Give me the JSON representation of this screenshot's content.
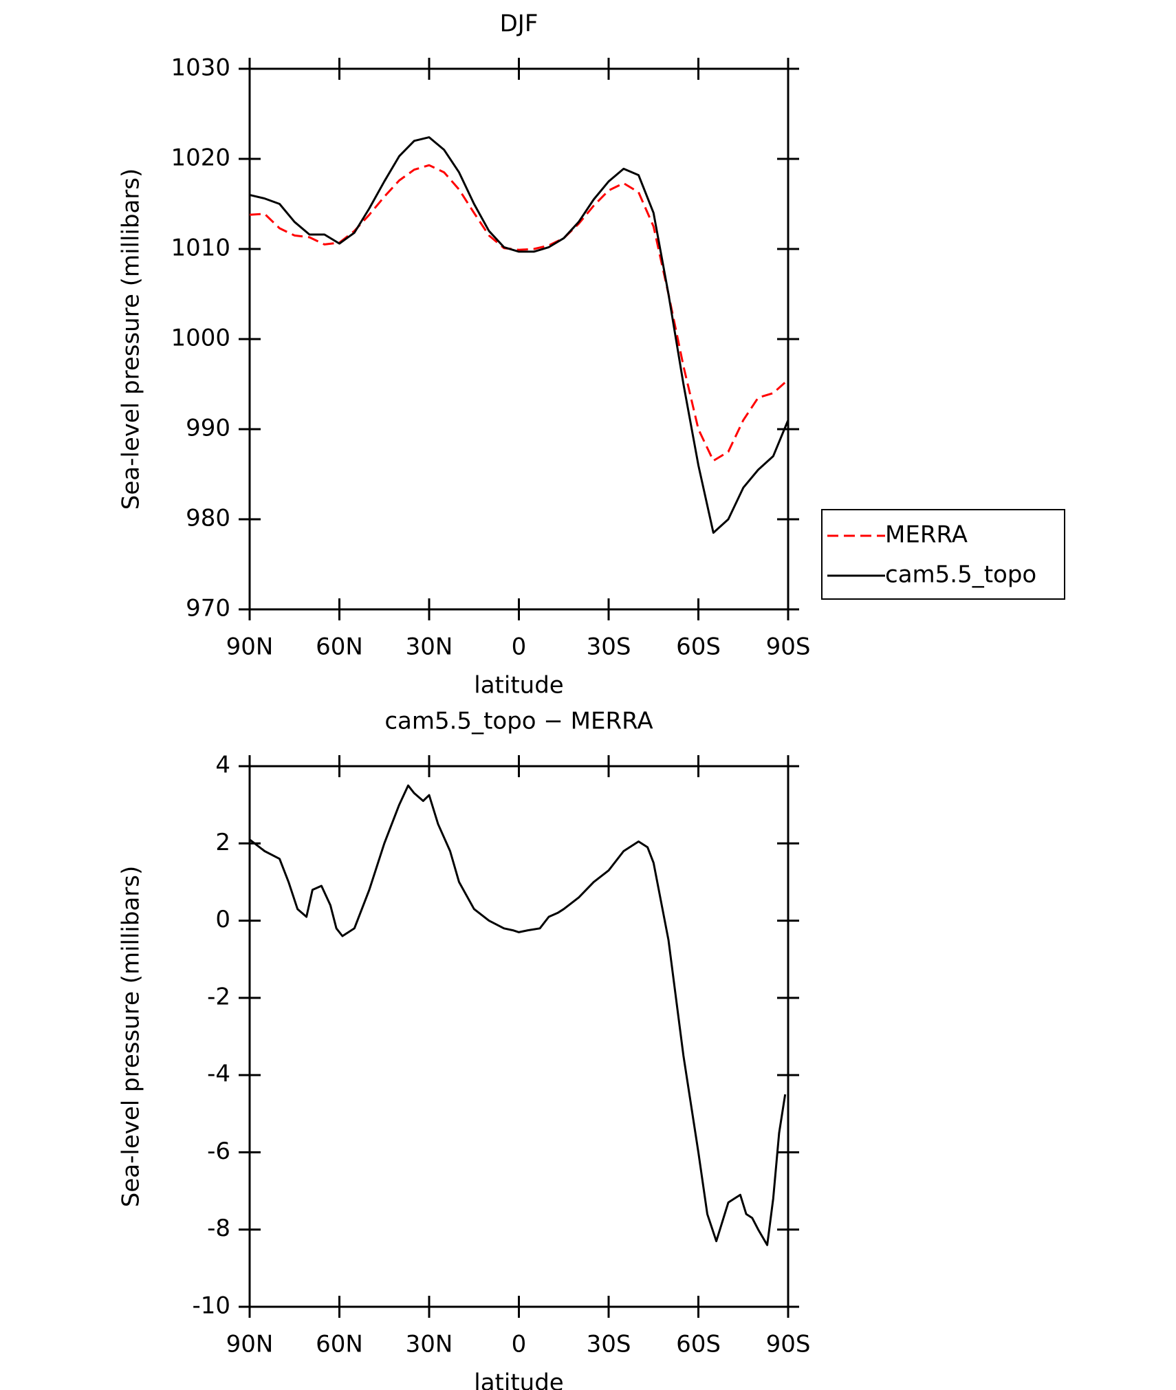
{
  "chart_data": [
    {
      "type": "line",
      "title": "DJF",
      "xlabel": "latitude",
      "ylabel": "Sea-level pressure (millibars)",
      "x": [
        90,
        85,
        80,
        75,
        70,
        65,
        60,
        55,
        50,
        45,
        40,
        35,
        30,
        25,
        20,
        15,
        10,
        5,
        0,
        -5,
        -10,
        -15,
        -20,
        -25,
        -30,
        -35,
        -40,
        -45,
        -50,
        -55,
        -60,
        -65,
        -70,
        -75,
        -80,
        -85,
        -90
      ],
      "series": [
        {
          "name": "MERRA",
          "color": "#ff0000",
          "dash": true,
          "values": [
            1013.8,
            1013.9,
            1012.3,
            1011.5,
            1011.3,
            1010.5,
            1010.7,
            1012,
            1013.8,
            1015.8,
            1017.6,
            1018.8,
            1019.3,
            1018.5,
            1016.6,
            1014,
            1011.5,
            1010.1,
            1009.9,
            1010,
            1010.4,
            1011.2,
            1012.8,
            1014.8,
            1016.5,
            1017.3,
            1016.3,
            1012.5,
            1005,
            997,
            990,
            986.5,
            987.5,
            991,
            993.5,
            994,
            995.5
          ]
        },
        {
          "name": "cam5.5_topo",
          "color": "#000000",
          "dash": false,
          "values": [
            1016,
            1015.6,
            1015,
            1013,
            1011.6,
            1011.6,
            1010.6,
            1011.8,
            1014.5,
            1017.5,
            1020.3,
            1022,
            1022.4,
            1021,
            1018.5,
            1015,
            1012,
            1010.2,
            1009.7,
            1009.7,
            1010.2,
            1011.2,
            1013,
            1015.5,
            1017.5,
            1018.9,
            1018.2,
            1014,
            1005,
            995,
            986,
            978.5,
            980,
            983.5,
            985.5,
            987,
            991
          ]
        }
      ],
      "xlim": [
        90,
        -90
      ],
      "xticks": [
        {
          "value": 90,
          "label": "90N"
        },
        {
          "value": 60,
          "label": "60N"
        },
        {
          "value": 30,
          "label": "30N"
        },
        0,
        {
          "value": -30,
          "label": "30S"
        },
        {
          "value": -60,
          "label": "60S"
        },
        {
          "value": -90,
          "label": "90S"
        }
      ],
      "ylim": [
        970,
        1030
      ],
      "yticks": [
        970,
        980,
        990,
        1000,
        1010,
        1020,
        1030
      ],
      "legend": "right"
    },
    {
      "type": "line",
      "title": "cam5.5_topo − MERRA",
      "xlabel": "latitude",
      "ylabel": "Sea-level pressure (millibars)",
      "x": [
        90,
        85,
        80,
        77,
        74,
        71,
        69,
        66,
        63,
        61,
        59,
        55,
        50,
        45,
        40,
        37,
        35,
        32,
        30,
        27,
        23,
        20,
        15,
        10,
        5,
        2,
        0,
        -3,
        -7,
        -10,
        -13,
        -15,
        -20,
        -25,
        -30,
        -35,
        -40,
        -43,
        -45,
        -50,
        -55,
        -60,
        -63,
        -66,
        -68,
        -70,
        -72,
        -74,
        -76,
        -78,
        -80,
        -83,
        -85,
        -87,
        -89
      ],
      "series": [
        {
          "color": "#000000",
          "dash": false,
          "values": [
            2.1,
            1.8,
            1.6,
            1.0,
            0.3,
            0.1,
            0.8,
            0.9,
            0.4,
            -0.2,
            -0.4,
            -0.2,
            0.8,
            2.0,
            3.0,
            3.5,
            3.3,
            3.1,
            3.25,
            2.5,
            1.8,
            1.0,
            0.3,
            0.0,
            -0.2,
            -0.25,
            -0.3,
            -0.25,
            -0.2,
            0.1,
            0.2,
            0.3,
            0.6,
            1.0,
            1.3,
            1.8,
            2.05,
            1.9,
            1.5,
            -0.5,
            -3.5,
            -6.0,
            -7.6,
            -8.3,
            -7.8,
            -7.3,
            -7.2,
            -7.1,
            -7.6,
            -7.7,
            -8.0,
            -8.4,
            -7.2,
            -5.5,
            -4.5
          ]
        }
      ],
      "xlim": [
        90,
        -90
      ],
      "xticks": [
        {
          "value": 90,
          "label": "90N"
        },
        {
          "value": 60,
          "label": "60N"
        },
        {
          "value": 30,
          "label": "30N"
        },
        0,
        {
          "value": -30,
          "label": "30S"
        },
        {
          "value": -60,
          "label": "60S"
        },
        {
          "value": -90,
          "label": "90S"
        }
      ],
      "ylim": [
        -10,
        4
      ],
      "yticks": [
        -10,
        -8,
        -6,
        -4,
        -2,
        0,
        2,
        4
      ]
    }
  ]
}
